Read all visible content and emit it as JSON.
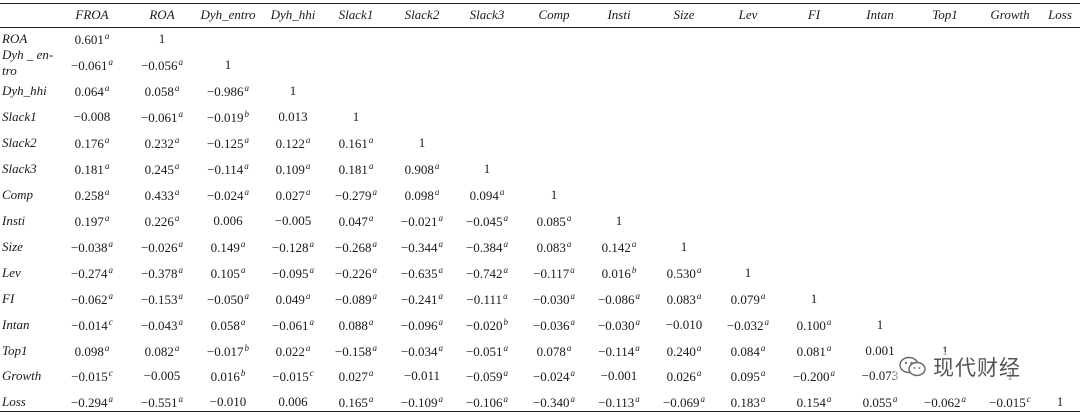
{
  "columns": [
    "FROA",
    "ROA",
    "Dyh_entro",
    "Dyh_hhi",
    "Slack1",
    "Slack2",
    "Slack3",
    "Comp",
    "Insti",
    "Size",
    "Lev",
    "FI",
    "Intan",
    "Top1",
    "Growth",
    "Loss"
  ],
  "rows": [
    {
      "label": "ROA",
      "cells": [
        {
          "v": "0.601",
          "s": "a"
        },
        {
          "v": "1",
          "s": ""
        }
      ]
    },
    {
      "label": "Dyh _ en-\ntro",
      "cells": [
        {
          "v": "−0.061",
          "s": "a"
        },
        {
          "v": "−0.056",
          "s": "a"
        },
        {
          "v": "1",
          "s": ""
        }
      ]
    },
    {
      "label": "Dyh_hhi",
      "cells": [
        {
          "v": "0.064",
          "s": "a"
        },
        {
          "v": "0.058",
          "s": "a"
        },
        {
          "v": "−0.986",
          "s": "a"
        },
        {
          "v": "1",
          "s": ""
        }
      ]
    },
    {
      "label": "Slack1",
      "cells": [
        {
          "v": "−0.008",
          "s": ""
        },
        {
          "v": "−0.061",
          "s": "a"
        },
        {
          "v": "−0.019",
          "s": "b"
        },
        {
          "v": "0.013",
          "s": ""
        },
        {
          "v": "1",
          "s": ""
        }
      ]
    },
    {
      "label": "Slack2",
      "cells": [
        {
          "v": "0.176",
          "s": "a"
        },
        {
          "v": "0.232",
          "s": "a"
        },
        {
          "v": "−0.125",
          "s": "a"
        },
        {
          "v": "0.122",
          "s": "a"
        },
        {
          "v": "0.161",
          "s": "a"
        },
        {
          "v": "1",
          "s": ""
        }
      ]
    },
    {
      "label": "Slack3",
      "cells": [
        {
          "v": "0.181",
          "s": "a"
        },
        {
          "v": "0.245",
          "s": "a"
        },
        {
          "v": "−0.114",
          "s": "a"
        },
        {
          "v": "0.109",
          "s": "a"
        },
        {
          "v": "0.181",
          "s": "a"
        },
        {
          "v": "0.908",
          "s": "a"
        },
        {
          "v": "1",
          "s": ""
        }
      ]
    },
    {
      "label": "Comp",
      "cells": [
        {
          "v": "0.258",
          "s": "a"
        },
        {
          "v": "0.433",
          "s": "a"
        },
        {
          "v": "−0.024",
          "s": "a"
        },
        {
          "v": "0.027",
          "s": "a"
        },
        {
          "v": "−0.279",
          "s": "a"
        },
        {
          "v": "0.098",
          "s": "a"
        },
        {
          "v": "0.094",
          "s": "a"
        },
        {
          "v": "1",
          "s": ""
        }
      ]
    },
    {
      "label": "Insti",
      "cells": [
        {
          "v": "0.197",
          "s": "a"
        },
        {
          "v": "0.226",
          "s": "a"
        },
        {
          "v": "0.006",
          "s": ""
        },
        {
          "v": "−0.005",
          "s": ""
        },
        {
          "v": "0.047",
          "s": "a"
        },
        {
          "v": "−0.021",
          "s": "a"
        },
        {
          "v": "−0.045",
          "s": "a"
        },
        {
          "v": "0.085",
          "s": "a"
        },
        {
          "v": "1",
          "s": ""
        }
      ]
    },
    {
      "label": "Size",
      "cells": [
        {
          "v": "−0.038",
          "s": "a"
        },
        {
          "v": "−0.026",
          "s": "a"
        },
        {
          "v": "0.149",
          "s": "a"
        },
        {
          "v": "−0.128",
          "s": "a"
        },
        {
          "v": "−0.268",
          "s": "a"
        },
        {
          "v": "−0.344",
          "s": "a"
        },
        {
          "v": "−0.384",
          "s": "a"
        },
        {
          "v": "0.083",
          "s": "a"
        },
        {
          "v": "0.142",
          "s": "a"
        },
        {
          "v": "1",
          "s": ""
        }
      ]
    },
    {
      "label": "Lev",
      "cells": [
        {
          "v": "−0.274",
          "s": "a"
        },
        {
          "v": "−0.378",
          "s": "a"
        },
        {
          "v": "0.105",
          "s": "a"
        },
        {
          "v": "−0.095",
          "s": "a"
        },
        {
          "v": "−0.226",
          "s": "a"
        },
        {
          "v": "−0.635",
          "s": "a"
        },
        {
          "v": "−0.742",
          "s": "a"
        },
        {
          "v": "−0.117",
          "s": "a"
        },
        {
          "v": "0.016",
          "s": "b"
        },
        {
          "v": "0.530",
          "s": "a"
        },
        {
          "v": "1",
          "s": ""
        }
      ]
    },
    {
      "label": "FI",
      "cells": [
        {
          "v": "−0.062",
          "s": "a"
        },
        {
          "v": "−0.153",
          "s": "a"
        },
        {
          "v": "−0.050",
          "s": "a"
        },
        {
          "v": "0.049",
          "s": "a"
        },
        {
          "v": "−0.089",
          "s": "a"
        },
        {
          "v": "−0.241",
          "s": "a"
        },
        {
          "v": "−0.111",
          "s": "a"
        },
        {
          "v": "−0.030",
          "s": "a"
        },
        {
          "v": "−0.086",
          "s": "a"
        },
        {
          "v": "0.083",
          "s": "a"
        },
        {
          "v": "0.079",
          "s": "a"
        },
        {
          "v": "1",
          "s": ""
        }
      ]
    },
    {
      "label": "Intan",
      "cells": [
        {
          "v": "−0.014",
          "s": "c"
        },
        {
          "v": "−0.043",
          "s": "a"
        },
        {
          "v": "0.058",
          "s": "a"
        },
        {
          "v": "−0.061",
          "s": "a"
        },
        {
          "v": "0.088",
          "s": "a"
        },
        {
          "v": "−0.096",
          "s": "a"
        },
        {
          "v": "−0.020",
          "s": "b"
        },
        {
          "v": "−0.036",
          "s": "a"
        },
        {
          "v": "−0.030",
          "s": "a"
        },
        {
          "v": "−0.010",
          "s": ""
        },
        {
          "v": "−0.032",
          "s": "a"
        },
        {
          "v": "0.100",
          "s": "a"
        },
        {
          "v": "1",
          "s": ""
        }
      ]
    },
    {
      "label": "Top1",
      "cells": [
        {
          "v": "0.098",
          "s": "a"
        },
        {
          "v": "0.082",
          "s": "a"
        },
        {
          "v": "−0.017",
          "s": "b"
        },
        {
          "v": "0.022",
          "s": "a"
        },
        {
          "v": "−0.158",
          "s": "a"
        },
        {
          "v": "−0.034",
          "s": "a"
        },
        {
          "v": "−0.051",
          "s": "a"
        },
        {
          "v": "0.078",
          "s": "a"
        },
        {
          "v": "−0.114",
          "s": "a"
        },
        {
          "v": "0.240",
          "s": "a"
        },
        {
          "v": "0.084",
          "s": "a"
        },
        {
          "v": "0.081",
          "s": "a"
        },
        {
          "v": "0.001",
          "s": ""
        },
        {
          "v": "1",
          "s": ""
        }
      ]
    },
    {
      "label": "Growth",
      "cells": [
        {
          "v": "−0.015",
          "s": "c"
        },
        {
          "v": "−0.005",
          "s": ""
        },
        {
          "v": "0.016",
          "s": "b"
        },
        {
          "v": "−0.015",
          "s": "c"
        },
        {
          "v": "0.027",
          "s": "a"
        },
        {
          "v": "−0.011",
          "s": ""
        },
        {
          "v": "−0.059",
          "s": "a"
        },
        {
          "v": "−0.024",
          "s": "a"
        },
        {
          "v": "−0.001",
          "s": ""
        },
        {
          "v": "0.026",
          "s": "a"
        },
        {
          "v": "0.095",
          "s": "a"
        },
        {
          "v": "−0.200",
          "s": "a"
        },
        {
          "v": "−0.073",
          "s": ""
        },
        {
          "v": "",
          "s": ""
        },
        {
          "v": "1",
          "s": ""
        }
      ]
    },
    {
      "label": "Loss",
      "cells": [
        {
          "v": "−0.294",
          "s": "a"
        },
        {
          "v": "−0.551",
          "s": "a"
        },
        {
          "v": "−0.010",
          "s": ""
        },
        {
          "v": "0.006",
          "s": ""
        },
        {
          "v": "0.165",
          "s": "a"
        },
        {
          "v": "−0.109",
          "s": "a"
        },
        {
          "v": "−0.106",
          "s": "a"
        },
        {
          "v": "−0.340",
          "s": "a"
        },
        {
          "v": "−0.113",
          "s": "a"
        },
        {
          "v": "−0.069",
          "s": "a"
        },
        {
          "v": "0.183",
          "s": "a"
        },
        {
          "v": "0.154",
          "s": "a"
        },
        {
          "v": "0.055",
          "s": "a"
        },
        {
          "v": "−0.062",
          "s": "a"
        },
        {
          "v": "−0.015",
          "s": "c"
        },
        {
          "v": "1",
          "s": ""
        }
      ]
    }
  ],
  "watermark": {
    "icon": "wechat-icon",
    "text": "现代财经"
  }
}
